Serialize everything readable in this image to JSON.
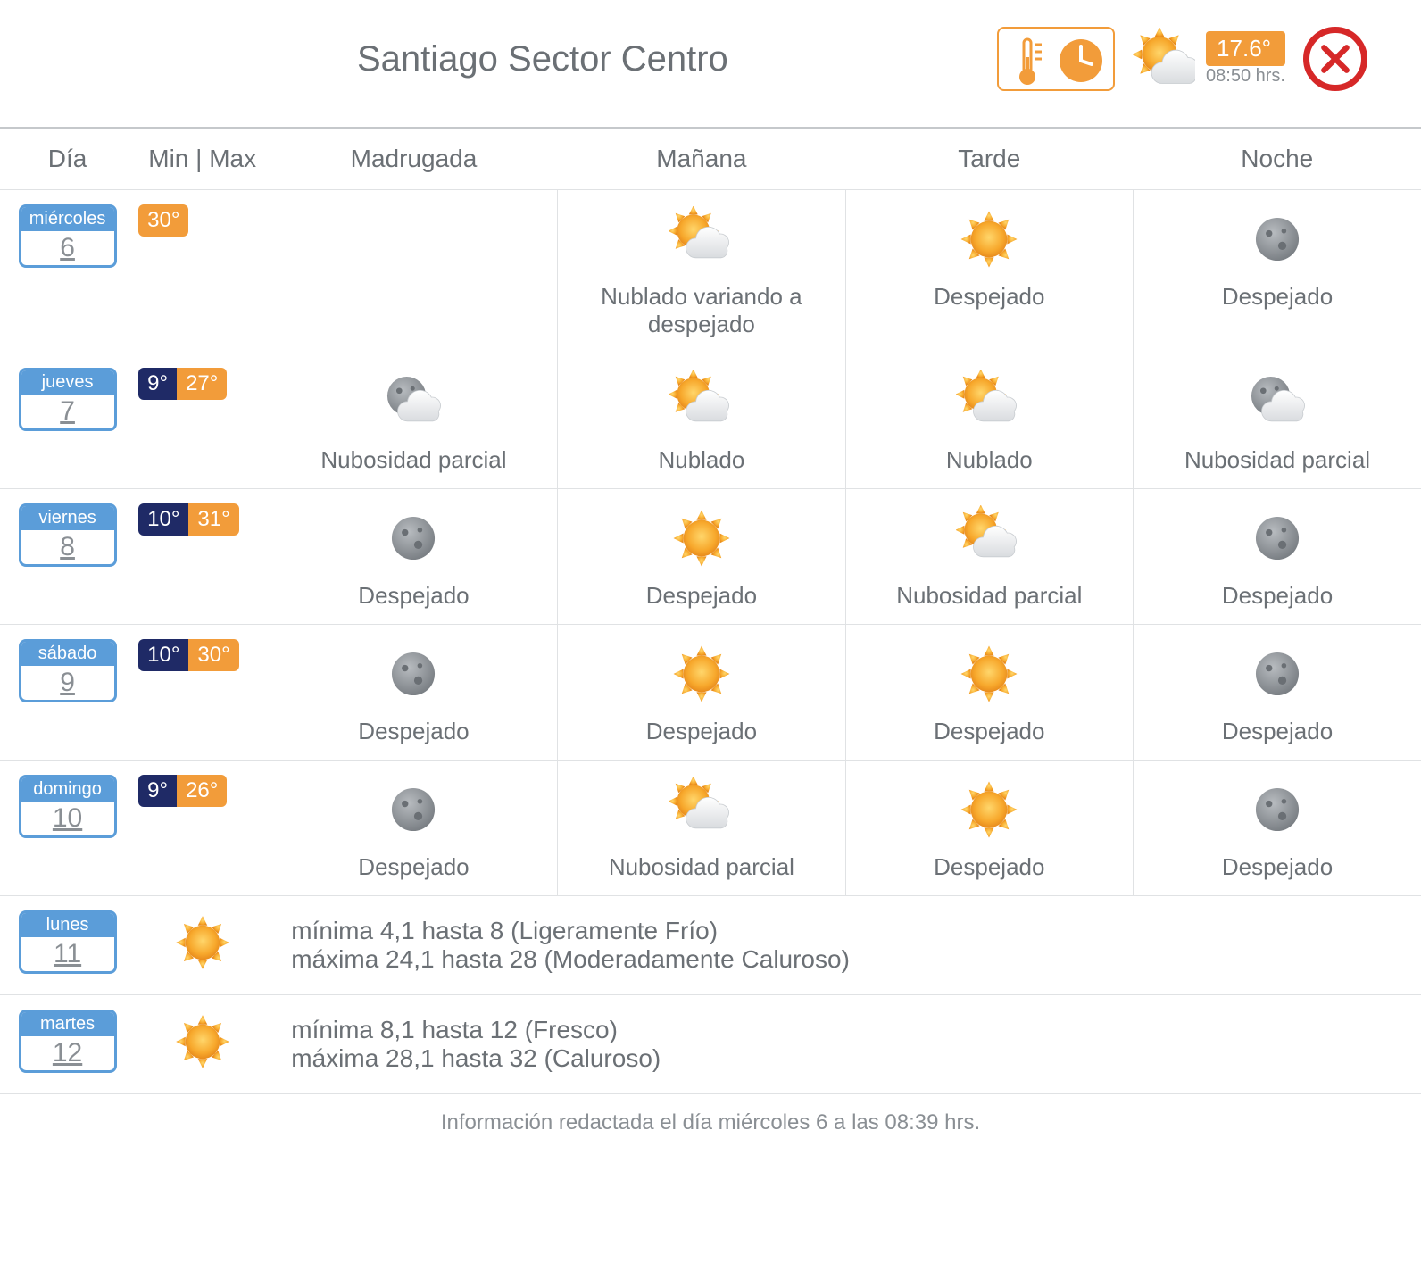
{
  "colors": {
    "accent_orange": "#f29c3a",
    "accent_blue": "#5b9dd9",
    "min_bg": "#1f2a66",
    "close_red": "#d62828",
    "text_gray": "#6b7075",
    "border_gray": "#e0e2e4"
  },
  "header": {
    "title": "Santiago Sector Centro",
    "current_temp": "17.6°",
    "current_time": "08:50 hrs."
  },
  "columns": {
    "day": "Día",
    "minmax": "Min | Max",
    "periods": [
      "Madrugada",
      "Mañana",
      "Tarde",
      "Noche"
    ]
  },
  "icon_types": {
    "sun": "sun",
    "moon": "moon",
    "sun_cloud": "sun_cloud",
    "moon_cloud": "moon_cloud"
  },
  "days": [
    {
      "name": "miércoles",
      "num": "6",
      "min": null,
      "max": "30°",
      "periods": [
        null,
        {
          "icon": "sun_cloud",
          "label": "Nublado variando a despejado"
        },
        {
          "icon": "sun",
          "label": "Despejado"
        },
        {
          "icon": "moon",
          "label": "Despejado"
        }
      ]
    },
    {
      "name": "jueves",
      "num": "7",
      "min": "9°",
      "max": "27°",
      "periods": [
        {
          "icon": "moon_cloud",
          "label": "Nubosidad parcial"
        },
        {
          "icon": "sun_cloud",
          "label": "Nublado"
        },
        {
          "icon": "sun_cloud",
          "label": "Nublado"
        },
        {
          "icon": "moon_cloud",
          "label": "Nubosidad parcial"
        }
      ]
    },
    {
      "name": "viernes",
      "num": "8",
      "min": "10°",
      "max": "31°",
      "periods": [
        {
          "icon": "moon",
          "label": "Despejado"
        },
        {
          "icon": "sun",
          "label": "Despejado"
        },
        {
          "icon": "sun_cloud",
          "label": "Nubosidad parcial"
        },
        {
          "icon": "moon",
          "label": "Despejado"
        }
      ]
    },
    {
      "name": "sábado",
      "num": "9",
      "min": "10°",
      "max": "30°",
      "periods": [
        {
          "icon": "moon",
          "label": "Despejado"
        },
        {
          "icon": "sun",
          "label": "Despejado"
        },
        {
          "icon": "sun",
          "label": "Despejado"
        },
        {
          "icon": "moon",
          "label": "Despejado"
        }
      ]
    },
    {
      "name": "domingo",
      "num": "10",
      "min": "9°",
      "max": "26°",
      "periods": [
        {
          "icon": "moon",
          "label": "Despejado"
        },
        {
          "icon": "sun_cloud",
          "label": "Nubosidad parcial"
        },
        {
          "icon": "sun",
          "label": "Despejado"
        },
        {
          "icon": "moon",
          "label": "Despejado"
        }
      ]
    }
  ],
  "extended": [
    {
      "name": "lunes",
      "num": "11",
      "icon": "sun",
      "min_line": "mínima 4,1 hasta 8 (Ligeramente Frío)",
      "max_line": "máxima 24,1 hasta 28 (Moderadamente Caluroso)"
    },
    {
      "name": "martes",
      "num": "12",
      "icon": "sun",
      "min_line": "mínima 8,1 hasta 12 (Fresco)",
      "max_line": "máxima 28,1 hasta 32 (Caluroso)"
    }
  ],
  "footer": "Información redactada el día miércoles 6 a las 08:39 hrs."
}
